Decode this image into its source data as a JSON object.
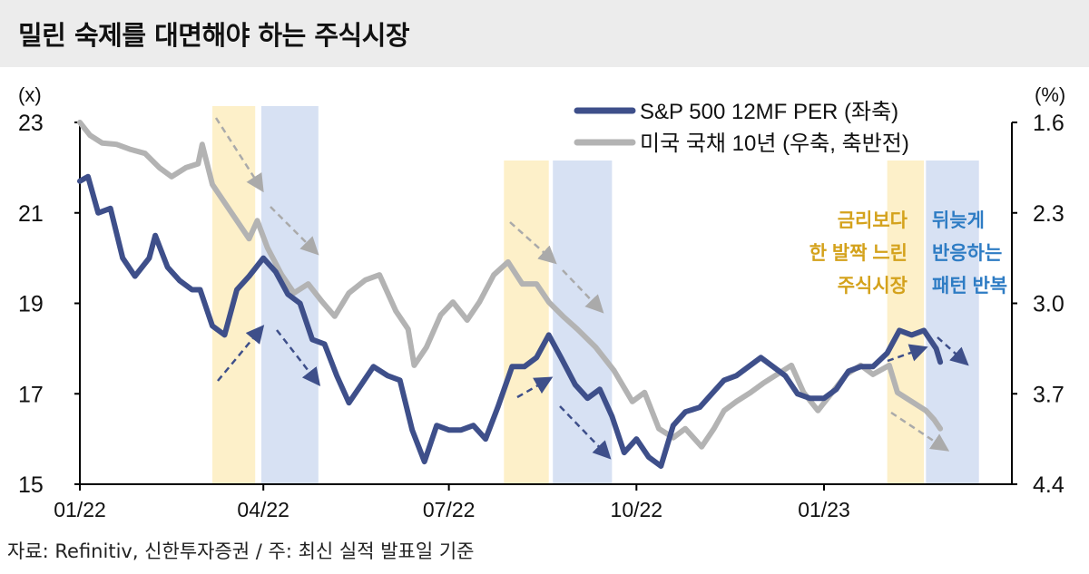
{
  "title": "밀린 숙제를 대면해야 하는 주식시장",
  "source": "자료: Refinitiv, 신한투자증권 / 주: 최신 실적 발표일 기준",
  "colors": {
    "per": "#3e4f8a",
    "yield": "#b3b3b3",
    "lag_band": "#fdf0c9",
    "react_band": "#d7e1f3",
    "note_yellow": "#d4a21c",
    "note_blue": "#2e7cc4"
  },
  "chart_data": {
    "type": "line",
    "left_axis": {
      "unit": "(x)",
      "ticks": [
        "23",
        "21",
        "19",
        "17",
        "15"
      ],
      "range": [
        15,
        23
      ]
    },
    "right_axis": {
      "unit": "(%)",
      "ticks": [
        "1.6",
        "2.3",
        "3.0",
        "3.7",
        "4.4"
      ],
      "range": [
        1.6,
        4.4
      ],
      "inverted": true
    },
    "x_axis": {
      "ticks": [
        "01/22",
        "04/22",
        "07/22",
        "10/22",
        "01/23"
      ],
      "tick_dates": [
        "2022-01-01",
        "2022-04-01",
        "2022-07-01",
        "2022-10-01",
        "2023-01-01"
      ],
      "range": [
        "2022-01-01",
        "2023-04-01"
      ]
    },
    "legend": {
      "placement": "top-right",
      "entries": [
        "S&P 500  12MF PER (좌축)",
        "미국 국채 10년 (우축, 축반전)"
      ]
    },
    "series": [
      {
        "name": "S&P 500  12MF PER (좌축)",
        "axis": "left",
        "color": "#3e4f8a",
        "points": [
          [
            "2022-01-01",
            21.7
          ],
          [
            "2022-01-05",
            21.8
          ],
          [
            "2022-01-10",
            21.0
          ],
          [
            "2022-01-16",
            21.1
          ],
          [
            "2022-01-22",
            20.0
          ],
          [
            "2022-01-28",
            19.6
          ],
          [
            "2022-02-04",
            20.0
          ],
          [
            "2022-02-07",
            20.5
          ],
          [
            "2022-02-13",
            19.8
          ],
          [
            "2022-02-19",
            19.5
          ],
          [
            "2022-02-25",
            19.3
          ],
          [
            "2022-03-01",
            19.3
          ],
          [
            "2022-03-07",
            18.5
          ],
          [
            "2022-03-13",
            18.3
          ],
          [
            "2022-03-19",
            19.3
          ],
          [
            "2022-03-25",
            19.6
          ],
          [
            "2022-04-01",
            20.0
          ],
          [
            "2022-04-07",
            19.7
          ],
          [
            "2022-04-13",
            19.2
          ],
          [
            "2022-04-19",
            19.0
          ],
          [
            "2022-04-25",
            18.2
          ],
          [
            "2022-05-01",
            18.1
          ],
          [
            "2022-05-07",
            17.4
          ],
          [
            "2022-05-13",
            16.8
          ],
          [
            "2022-05-19",
            17.2
          ],
          [
            "2022-05-25",
            17.6
          ],
          [
            "2022-06-01",
            17.4
          ],
          [
            "2022-06-07",
            17.3
          ],
          [
            "2022-06-13",
            16.2
          ],
          [
            "2022-06-19",
            15.5
          ],
          [
            "2022-06-25",
            16.3
          ],
          [
            "2022-07-01",
            16.2
          ],
          [
            "2022-07-07",
            16.2
          ],
          [
            "2022-07-13",
            16.3
          ],
          [
            "2022-07-19",
            16.0
          ],
          [
            "2022-07-25",
            16.7
          ],
          [
            "2022-08-01",
            17.6
          ],
          [
            "2022-08-07",
            17.6
          ],
          [
            "2022-08-13",
            17.8
          ],
          [
            "2022-08-19",
            18.3
          ],
          [
            "2022-08-25",
            17.8
          ],
          [
            "2022-09-01",
            17.2
          ],
          [
            "2022-09-07",
            16.9
          ],
          [
            "2022-09-13",
            17.1
          ],
          [
            "2022-09-19",
            16.5
          ],
          [
            "2022-09-25",
            15.7
          ],
          [
            "2022-10-01",
            16.0
          ],
          [
            "2022-10-07",
            15.6
          ],
          [
            "2022-10-13",
            15.4
          ],
          [
            "2022-10-19",
            16.3
          ],
          [
            "2022-10-25",
            16.6
          ],
          [
            "2022-11-01",
            16.7
          ],
          [
            "2022-11-07",
            17.0
          ],
          [
            "2022-11-13",
            17.3
          ],
          [
            "2022-11-19",
            17.4
          ],
          [
            "2022-11-25",
            17.6
          ],
          [
            "2022-12-01",
            17.8
          ],
          [
            "2022-12-07",
            17.6
          ],
          [
            "2022-12-13",
            17.4
          ],
          [
            "2022-12-19",
            17.0
          ],
          [
            "2022-12-25",
            16.9
          ],
          [
            "2023-01-01",
            16.9
          ],
          [
            "2023-01-07",
            17.1
          ],
          [
            "2023-01-13",
            17.5
          ],
          [
            "2023-01-19",
            17.6
          ],
          [
            "2023-01-25",
            17.6
          ],
          [
            "2023-02-01",
            17.9
          ],
          [
            "2023-02-07",
            18.4
          ],
          [
            "2023-02-13",
            18.3
          ],
          [
            "2023-02-19",
            18.4
          ],
          [
            "2023-02-25",
            18.0
          ],
          [
            "2023-02-27",
            17.7
          ]
        ]
      },
      {
        "name": "미국 국채 10년 (우축, 축반전)",
        "axis": "right",
        "color": "#b3b3b3",
        "points": [
          [
            "2022-01-01",
            1.6
          ],
          [
            "2022-01-06",
            1.7
          ],
          [
            "2022-01-12",
            1.76
          ],
          [
            "2022-01-19",
            1.77
          ],
          [
            "2022-01-26",
            1.81
          ],
          [
            "2022-02-02",
            1.84
          ],
          [
            "2022-02-09",
            1.95
          ],
          [
            "2022-02-15",
            2.02
          ],
          [
            "2022-02-22",
            1.95
          ],
          [
            "2022-02-28",
            1.92
          ],
          [
            "2022-03-02",
            1.77
          ],
          [
            "2022-03-07",
            2.08
          ],
          [
            "2022-03-16",
            2.29
          ],
          [
            "2022-03-25",
            2.5
          ],
          [
            "2022-03-29",
            2.36
          ],
          [
            "2022-04-03",
            2.57
          ],
          [
            "2022-04-10",
            2.78
          ],
          [
            "2022-04-16",
            2.92
          ],
          [
            "2022-04-23",
            2.85
          ],
          [
            "2022-04-30",
            2.99
          ],
          [
            "2022-05-06",
            3.1
          ],
          [
            "2022-05-13",
            2.92
          ],
          [
            "2022-05-21",
            2.82
          ],
          [
            "2022-05-28",
            2.78
          ],
          [
            "2022-06-05",
            3.06
          ],
          [
            "2022-06-11",
            3.2
          ],
          [
            "2022-06-14",
            3.48
          ],
          [
            "2022-06-20",
            3.34
          ],
          [
            "2022-06-27",
            3.09
          ],
          [
            "2022-07-03",
            2.99
          ],
          [
            "2022-07-10",
            3.13
          ],
          [
            "2022-07-16",
            2.99
          ],
          [
            "2022-07-23",
            2.78
          ],
          [
            "2022-07-30",
            2.68
          ],
          [
            "2022-08-06",
            2.85
          ],
          [
            "2022-08-13",
            2.85
          ],
          [
            "2022-08-19",
            2.99
          ],
          [
            "2022-08-26",
            3.1
          ],
          [
            "2022-09-02",
            3.2
          ],
          [
            "2022-09-11",
            3.34
          ],
          [
            "2022-09-20",
            3.52
          ],
          [
            "2022-09-29",
            3.76
          ],
          [
            "2022-10-05",
            3.69
          ],
          [
            "2022-10-12",
            3.97
          ],
          [
            "2022-10-19",
            4.04
          ],
          [
            "2022-10-25",
            3.97
          ],
          [
            "2022-11-02",
            4.11
          ],
          [
            "2022-11-08",
            3.97
          ],
          [
            "2022-11-13",
            3.83
          ],
          [
            "2022-11-19",
            3.76
          ],
          [
            "2022-11-26",
            3.69
          ],
          [
            "2022-12-02",
            3.62
          ],
          [
            "2022-12-09",
            3.55
          ],
          [
            "2022-12-16",
            3.48
          ],
          [
            "2022-12-22",
            3.69
          ],
          [
            "2022-12-29",
            3.83
          ],
          [
            "2023-01-05",
            3.69
          ],
          [
            "2023-01-12",
            3.55
          ],
          [
            "2023-01-19",
            3.48
          ],
          [
            "2023-01-25",
            3.55
          ],
          [
            "2023-02-02",
            3.48
          ],
          [
            "2023-02-06",
            3.69
          ],
          [
            "2023-02-13",
            3.76
          ],
          [
            "2023-02-20",
            3.83
          ],
          [
            "2023-02-24",
            3.9
          ],
          [
            "2023-02-27",
            3.97
          ]
        ]
      }
    ],
    "bands": [
      {
        "type": "lag",
        "start": "2022-03-07",
        "end": "2022-03-28"
      },
      {
        "type": "react",
        "start": "2022-03-31",
        "end": "2022-04-28"
      },
      {
        "type": "lag",
        "start": "2022-07-28",
        "end": "2022-08-19"
      },
      {
        "type": "react",
        "start": "2022-08-21",
        "end": "2022-09-19"
      },
      {
        "type": "lag",
        "start": "2023-02-01",
        "end": "2023-02-19"
      },
      {
        "type": "react",
        "start": "2023-02-20",
        "end": "2023-03-18"
      }
    ],
    "annotations": {
      "yellow": [
        "금리보다",
        "한 발짝 느린",
        "주식시장"
      ],
      "blue": [
        "뒤늦게",
        "반응하는",
        "패턴 반복"
      ]
    }
  }
}
